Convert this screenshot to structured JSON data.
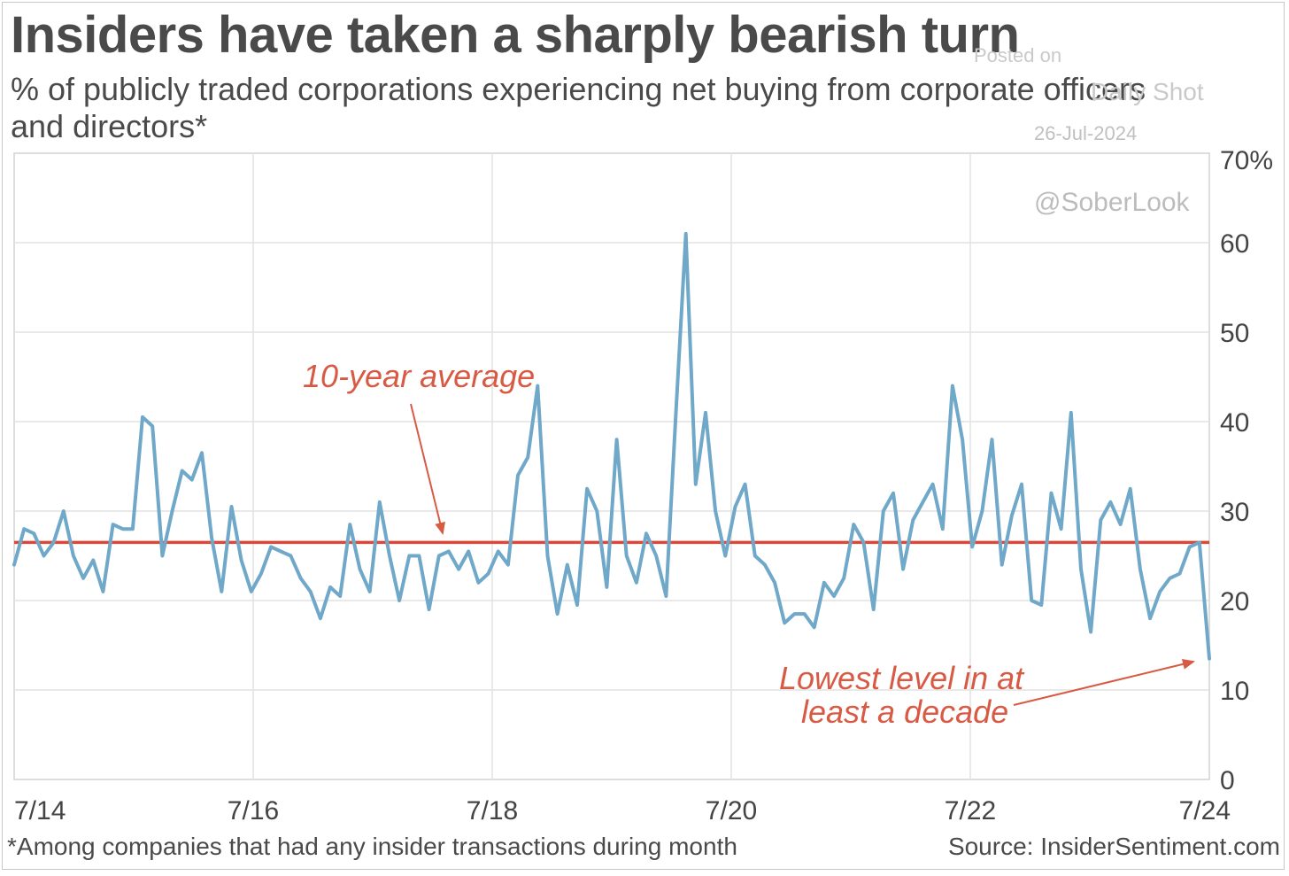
{
  "header": {
    "title": "Insiders have taken a sharply bearish turn",
    "subtitle": "% of publicly traded corporations experiencing net buying from corporate officers and directors*"
  },
  "watermark": {
    "posted": "Posted on",
    "brand": "Daily Shot",
    "date": "26-Jul-2024",
    "handle": "@SoberLook"
  },
  "footer": {
    "footnote": "*Among companies that had any insider transactions during month",
    "source": "Source: InsiderSentiment.com"
  },
  "chart_data": {
    "type": "line",
    "xlabel": "",
    "ylabel": "",
    "ylim": [
      0,
      70
    ],
    "y_ticks": [
      "0",
      "10",
      "20",
      "30",
      "40",
      "50",
      "60",
      "70%"
    ],
    "x_ticks": [
      "7/14",
      "7/16",
      "7/18",
      "7/20",
      "7/22",
      "7/24"
    ],
    "grid": true,
    "colors": {
      "series": "#6fa8c8",
      "average": "#d9493a",
      "annotation": "#d85a44",
      "grid": "#e2e2e2"
    },
    "average_line": {
      "label": "10-year average",
      "value": 26.5
    },
    "annotations": [
      {
        "text_lines": [
          "Lowest level in at",
          "least a decade"
        ],
        "points_to": "last value"
      }
    ],
    "series": [
      {
        "values": [
          24,
          28,
          27.5,
          25,
          26.5,
          30,
          25,
          22.5,
          24.5,
          21,
          28.5,
          28,
          28,
          40.5,
          39.5,
          25,
          30,
          34.5,
          33.5,
          36.5,
          27,
          21,
          30.5,
          24.5,
          21,
          23,
          26,
          25.5,
          25,
          22.5,
          21,
          18,
          21.5,
          20.5,
          28.5,
          23.5,
          21,
          31,
          25,
          20,
          25,
          25,
          19,
          25,
          25.5,
          23.5,
          25.5,
          22,
          23,
          25.5,
          24,
          34,
          36,
          44,
          25,
          18.5,
          24,
          19.5,
          32.5,
          30,
          21.5,
          38,
          25,
          22,
          27.5,
          25,
          20.5,
          41,
          61,
          33,
          41,
          30,
          25,
          30.5,
          33,
          25,
          24,
          22,
          17.5,
          18.5,
          18.5,
          17,
          22,
          20.5,
          22.5,
          28.5,
          26.5,
          19,
          30,
          32,
          23.5,
          29,
          31,
          33,
          28,
          44,
          38,
          26,
          30,
          38,
          24,
          29.5,
          33,
          20,
          19.5,
          32,
          28,
          41,
          23.5,
          16.5,
          29,
          31,
          28.5,
          32.5,
          23.5,
          18,
          21,
          22.5,
          23,
          26,
          26.5,
          13.5
        ]
      }
    ]
  }
}
